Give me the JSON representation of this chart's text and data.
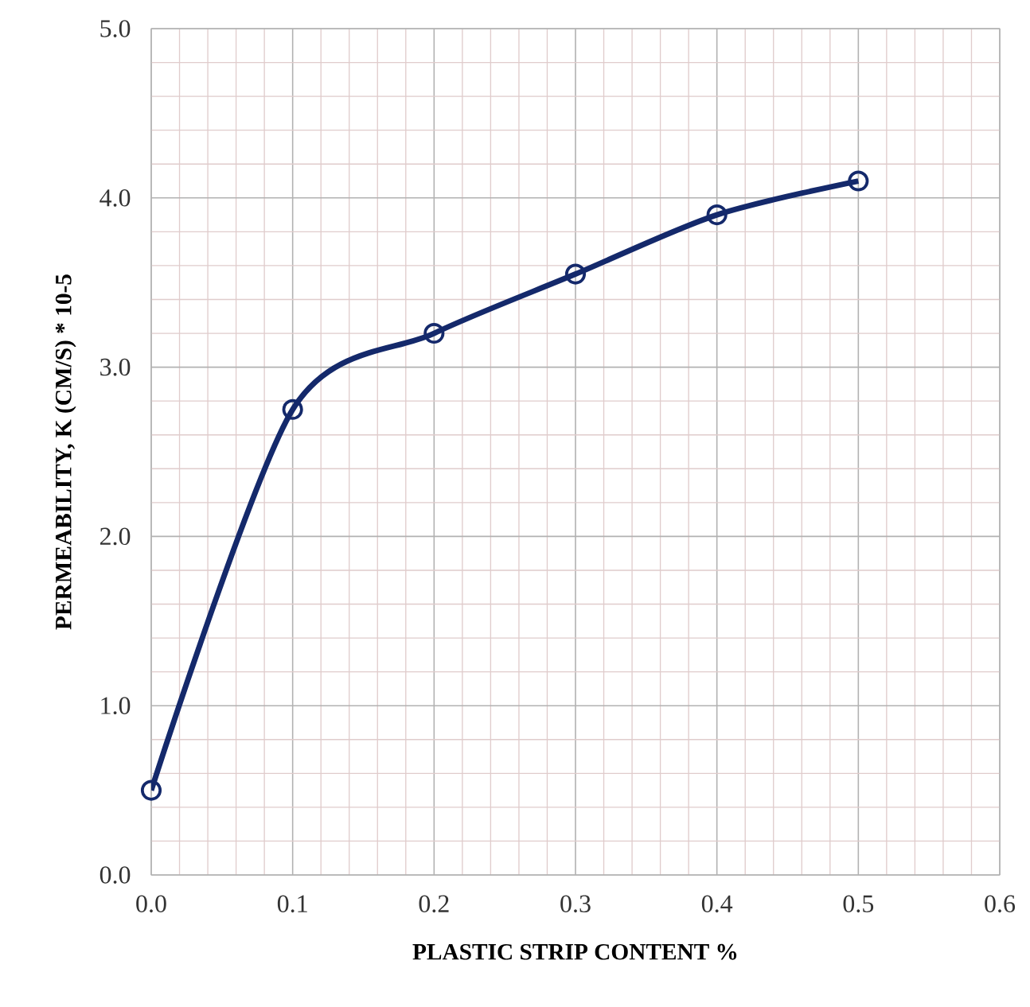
{
  "chart_data": {
    "type": "line",
    "xlabel": "PLASTIC STRIP CONTENT %",
    "ylabel": "PERMEABILITY, K (CM/S) * 10-5",
    "x": [
      0.0,
      0.1,
      0.2,
      0.3,
      0.4,
      0.5
    ],
    "series": [
      {
        "color": "#14296b",
        "values": [
          0.5,
          2.75,
          3.2,
          3.55,
          3.9,
          4.1
        ]
      }
    ],
    "xlim": [
      0,
      0.6
    ],
    "ylim": [
      0,
      5
    ],
    "xticks": [
      {
        "value": 0,
        "label": "0.0"
      },
      0.1,
      0.2,
      0.3,
      0.4,
      0.5,
      0.6
    ],
    "yticks": [
      {
        "value": 0,
        "label": "0.0"
      },
      {
        "value": 1,
        "label": "1.0"
      },
      {
        "value": 2,
        "label": "2.0"
      },
      {
        "value": 3,
        "label": "3.0"
      },
      {
        "value": 4,
        "label": "4.0"
      },
      {
        "value": 5,
        "label": "5.0"
      }
    ],
    "grid": true,
    "marker": "circle",
    "line_style": "solid"
  }
}
